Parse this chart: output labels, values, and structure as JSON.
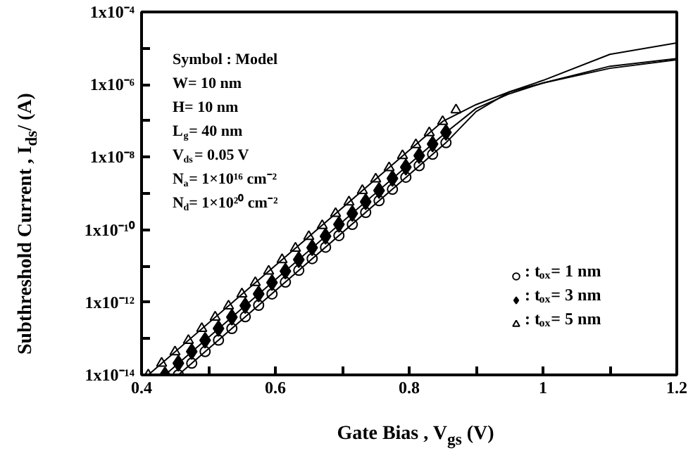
{
  "chart_data": {
    "type": "scatter",
    "xlabel": "Gate Bias , V$_{gs}$ (V)",
    "ylabel": "Subthreshold Current , I$_{ds}$/ (A)",
    "log": "y",
    "grid": false,
    "legend": "bottom right",
    "xlim": [
      0.4,
      1.2
    ],
    "xticks": [
      0.4,
      {
        "value": 0.5,
        "label": null
      },
      0.6,
      {
        "value": 0.7,
        "label": null
      },
      0.8,
      {
        "value": 0.9,
        "label": null
      },
      1,
      {
        "value": 1.1,
        "label": null
      },
      1.2
    ],
    "ylim": [
      1e-14,
      0.0001
    ],
    "yticks": [
      {
        "value": 1e-14,
        "label": "1x10⁻¹⁴"
      },
      {
        "value": 1e-13,
        "label": null
      },
      {
        "value": 1e-12,
        "label": "1x10⁻¹²"
      },
      {
        "value": 1e-11,
        "label": null
      },
      {
        "value": 1e-10,
        "label": "1x10⁻¹⁰"
      },
      {
        "value": 1e-09,
        "label": null
      },
      {
        "value": 1e-08,
        "label": "1x10⁻⁸"
      },
      {
        "value": 1e-07,
        "label": null
      },
      {
        "value": 1e-06,
        "label": "1x10⁻⁶"
      },
      {
        "value": 1e-05,
        "label": null
      },
      {
        "value": 0.0001,
        "label": "1x10⁻⁴"
      }
    ],
    "annotations": [
      "Symbol : Model",
      "W= 10 nm",
      "H= 10 nm",
      "L$_{g}$= 40 nm",
      "V$_{ds}$= 0.05 V",
      "N$_{a}$= 1×10¹⁶ cm⁻²",
      "N$_{d}$= 1×10²⁰ cm⁻²"
    ],
    "series": [
      {
        "type": "line",
        "color": "#000000",
        "line_style": "solid",
        "x": [
          0.41,
          0.85,
          0.9,
          0.95,
          1.0,
          1.1,
          1.2
        ],
        "values": [
          1e-14,
          9.6e-08,
          2.8e-07,
          6.3e-07,
          1.1e-06,
          2.8e-06,
          4.8e-06
        ]
      },
      {
        "type": "line",
        "color": "#000000",
        "line_style": "solid",
        "x": [
          0.435,
          0.855,
          0.9,
          0.95,
          1.0,
          1.1,
          1.2
        ],
        "values": [
          1e-14,
          4.8e-08,
          2.2e-07,
          5.6e-07,
          1.1e-06,
          3.2e-06,
          5.2e-06
        ]
      },
      {
        "type": "line",
        "color": "#000000",
        "line_style": "solid",
        "x": [
          0.455,
          0.855,
          0.9,
          0.95,
          1.0,
          1.1,
          1.2
        ],
        "values": [
          1e-14,
          2.5e-08,
          1.8e-07,
          6.3e-07,
          1.3e-06,
          6.8e-06,
          1.4e-05
        ]
      },
      {
        "name": ": t$_{ox}$= 1 nm",
        "marker": "circle",
        "color": "#000000",
        "x": [
          0.455,
          0.475,
          0.495,
          0.515,
          0.535,
          0.555,
          0.575,
          0.595,
          0.615,
          0.635,
          0.655,
          0.675,
          0.695,
          0.715,
          0.735,
          0.755,
          0.775,
          0.795,
          0.815,
          0.835,
          0.855
        ],
        "values": [
          1e-14,
          2.1e-14,
          4.4e-14,
          9.1e-14,
          1.9e-13,
          4e-13,
          8.3e-13,
          1.7e-12,
          3.6e-12,
          7.6e-12,
          1.6e-11,
          3.3e-11,
          6.9e-11,
          1.4e-10,
          3e-10,
          6.3e-10,
          1.3e-09,
          2.8e-09,
          5.8e-09,
          1.2e-08,
          2.5e-08
        ]
      },
      {
        "name": ": t$_{ox}$= 3 nm",
        "marker": "diamond",
        "color": "#000000",
        "x": [
          0.435,
          0.455,
          0.475,
          0.495,
          0.515,
          0.535,
          0.555,
          0.575,
          0.595,
          0.615,
          0.635,
          0.655,
          0.675,
          0.695,
          0.715,
          0.735,
          0.755,
          0.775,
          0.795,
          0.815,
          0.835,
          0.855
        ],
        "values": [
          1e-14,
          2.1e-14,
          4.4e-14,
          9e-14,
          1.9e-13,
          3.9e-13,
          8.1e-13,
          1.7e-12,
          3.5e-12,
          7.2e-12,
          1.5e-11,
          3.2e-11,
          6.6e-11,
          1.4e-10,
          2.8e-10,
          5.9e-10,
          1.2e-09,
          2.6e-09,
          5.3e-09,
          1.1e-08,
          2.3e-08,
          4.8e-08
        ]
      },
      {
        "name": ": t$_{ox}$= 5 nm",
        "marker": "triangle",
        "color": "#000000",
        "x": [
          0.41,
          0.43,
          0.45,
          0.47,
          0.49,
          0.51,
          0.53,
          0.55,
          0.57,
          0.59,
          0.61,
          0.63,
          0.65,
          0.67,
          0.69,
          0.71,
          0.73,
          0.75,
          0.77,
          0.79,
          0.81,
          0.83,
          0.85,
          0.87
        ],
        "values": [
          1e-14,
          2.1e-14,
          4.3e-14,
          8.9e-14,
          1.9e-13,
          3.9e-13,
          7.9e-13,
          1.7e-12,
          3.5e-12,
          7.2e-12,
          1.5e-11,
          3.1e-11,
          6.5e-11,
          1.3e-10,
          2.8e-10,
          5.8e-10,
          1.2e-09,
          2.5e-09,
          5.1e-09,
          1.1e-08,
          2.2e-08,
          4.7e-08,
          9.6e-08,
          2e-07
        ]
      }
    ]
  }
}
